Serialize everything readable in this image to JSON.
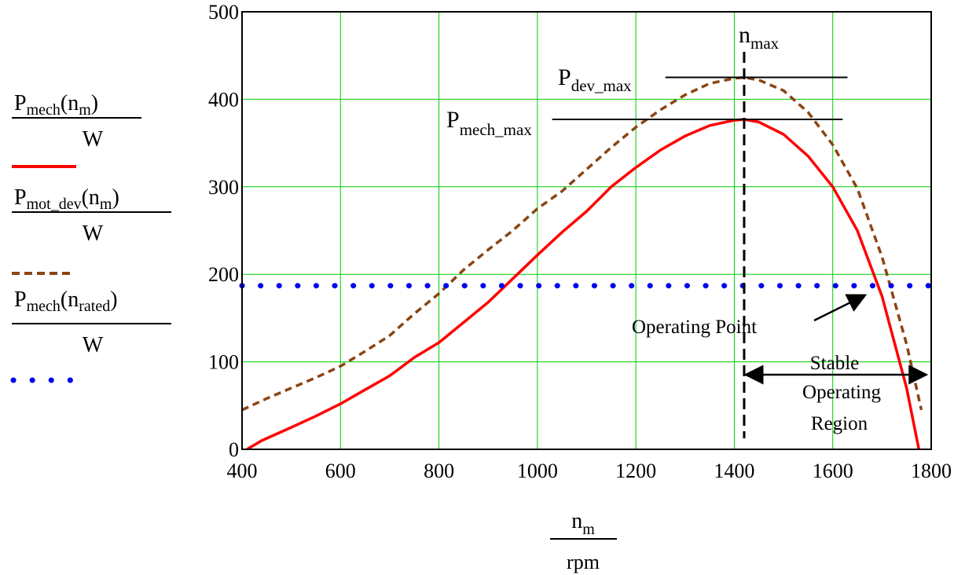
{
  "chart_data": {
    "type": "line",
    "title": "",
    "xlabel": {
      "num": "n",
      "num_sub": "m",
      "den": "rpm"
    },
    "x_range": [
      400,
      1800
    ],
    "y_range": [
      0,
      500
    ],
    "x_ticks": [
      "400",
      "600",
      "800",
      "1000",
      "1200",
      "1400",
      "1600",
      "1800"
    ],
    "y_ticks": [
      "0",
      "100",
      "200",
      "300",
      "400",
      "500"
    ],
    "grid": true,
    "grid_color": "#00cc00",
    "legend_placement": "left",
    "series": [
      {
        "key": "mech",
        "legend": {
          "main": "P",
          "sub": "mech",
          "arg": "n",
          "arg_sub": "m",
          "den": "W"
        },
        "color": "#ff0000",
        "style": "solid",
        "x": [
          410,
          440,
          500,
          550,
          600,
          650,
          700,
          750,
          800,
          850,
          900,
          950,
          1000,
          1050,
          1100,
          1150,
          1200,
          1250,
          1300,
          1350,
          1400,
          1420,
          1450,
          1500,
          1550,
          1600,
          1650,
          1700,
          1750,
          1775
        ],
        "y": [
          0,
          10,
          25,
          38,
          52,
          68,
          84,
          105,
          122,
          145,
          168,
          195,
          222,
          248,
          272,
          300,
          322,
          342,
          358,
          370,
          376,
          377,
          374,
          360,
          335,
          300,
          250,
          175,
          70,
          0
        ]
      },
      {
        "key": "dev",
        "legend": {
          "main": "P",
          "sub": "mot_dev",
          "arg": "n",
          "arg_sub": "m",
          "den": "W"
        },
        "color": "#8b4513",
        "style": "dashed",
        "x": [
          400,
          450,
          500,
          550,
          600,
          650,
          700,
          750,
          800,
          850,
          900,
          950,
          1000,
          1050,
          1100,
          1150,
          1200,
          1250,
          1300,
          1350,
          1400,
          1420,
          1450,
          1500,
          1550,
          1600,
          1650,
          1700,
          1750,
          1780
        ],
        "y": [
          45,
          58,
          70,
          82,
          95,
          112,
          130,
          155,
          178,
          205,
          228,
          250,
          275,
          295,
          320,
          345,
          368,
          388,
          405,
          418,
          424,
          425,
          422,
          410,
          385,
          348,
          298,
          220,
          120,
          45
        ]
      },
      {
        "key": "rated",
        "legend": {
          "main": "P",
          "sub": "mech",
          "arg": "n",
          "arg_sub": "rated",
          "den": "W"
        },
        "color": "#0000ee",
        "style": "dotted",
        "x": [
          400,
          1800
        ],
        "y": [
          187,
          187
        ]
      }
    ],
    "annotations": {
      "n_max": {
        "main": "n",
        "sub": "max",
        "x": 1420
      },
      "p_dev_max": {
        "main": "P",
        "sub": "dev_max",
        "y": 425,
        "x_from": 1260,
        "x_to": 1630
      },
      "p_mech_max": {
        "main": "P",
        "sub": "mech_max",
        "y": 377,
        "x_from": 1030,
        "x_to": 1620
      },
      "operating_point": {
        "text": "Operating Point",
        "arrow_to_x": 1685,
        "arrow_to_y": 187
      },
      "stable_region": {
        "lines": [
          "Stable",
          "Operating",
          "Region"
        ],
        "x_from": 1420,
        "x_to": 1790,
        "y": 100
      }
    }
  }
}
